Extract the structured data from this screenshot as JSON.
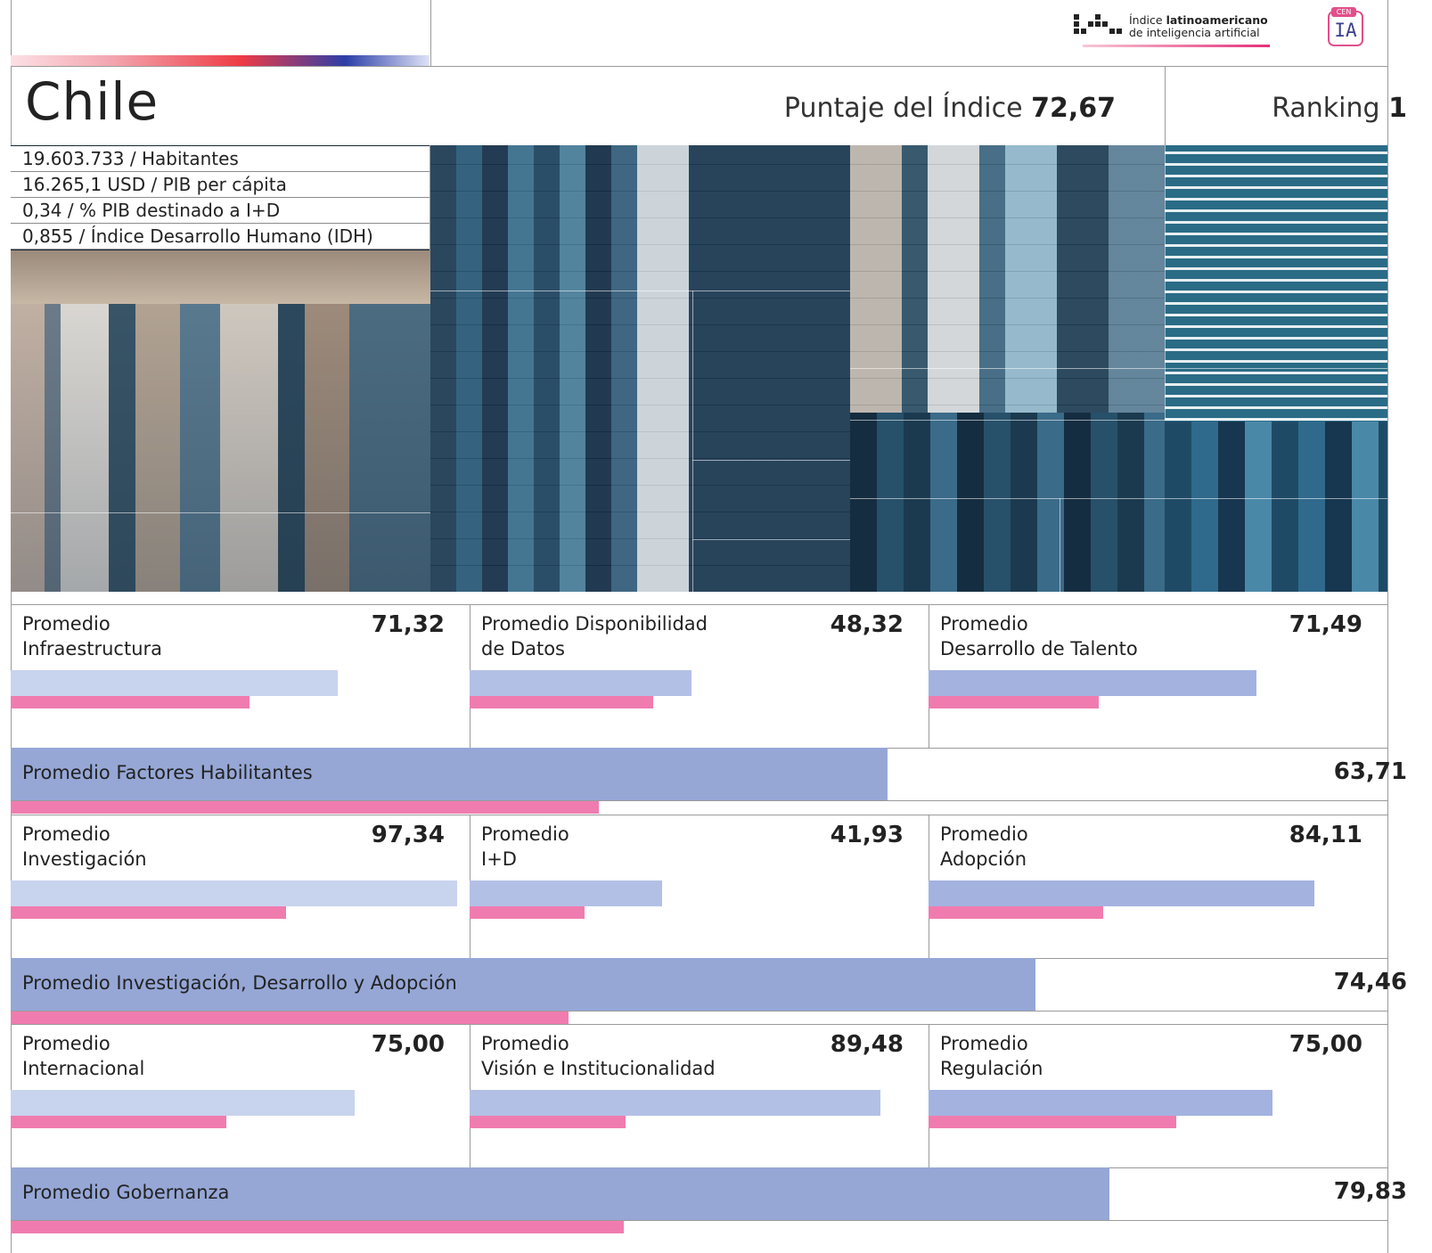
{
  "header": {
    "logo_title_prefix": "Índice",
    "logo_title_bold": "latinoamericano",
    "logo_subtitle": "de inteligencia artificial",
    "cenia_tag": "CEN",
    "cenia_mark": "IA"
  },
  "country": {
    "name": "Chile",
    "score_label": "Puntaje del Índice",
    "score_value": "72,67",
    "rank_label": "Ranking",
    "rank_value": "1"
  },
  "stats": [
    "19.603.733 / Habitantes",
    "16.265,1 USD / PIB per cápita",
    "0,34 / % PIB destinado a I+D",
    "0,855 / Índice Desarrollo Humano (IDH)"
  ],
  "colors": {
    "bar_light": "#c8d3ee",
    "bar_mid": "#b3c0e6",
    "bar_dark": "#a3b2df",
    "band": "#96a7d6",
    "pink": "#f07caf"
  },
  "groups": [
    {
      "cells": [
        {
          "line1": "Promedio",
          "line2": "Infraestructura",
          "value": "71,32",
          "score": 71.32,
          "benchmark": 0.52
        },
        {
          "line1": "Promedio Disponibilidad",
          "line2": "de Datos",
          "value": "48,32",
          "score": 48.32,
          "benchmark": 0.4
        },
        {
          "line1": "Promedio",
          "line2": "Desarrollo de Talento",
          "value": "71,49",
          "score": 71.49,
          "benchmark": 0.37
        }
      ],
      "band": {
        "label": "Promedio Factores Habilitantes",
        "value": "63,71",
        "score": 63.71,
        "benchmark": 0.427
      }
    },
    {
      "cells": [
        {
          "line1": "Promedio",
          "line2": "Investigación",
          "value": "97,34",
          "score": 97.34,
          "benchmark": 0.6
        },
        {
          "line1": "Promedio",
          "line2": "I+D",
          "value": "41,93",
          "score": 41.93,
          "benchmark": 0.25
        },
        {
          "line1": "Promedio",
          "line2": "Adopción",
          "value": "84,11",
          "score": 84.11,
          "benchmark": 0.38
        }
      ],
      "band": {
        "label": "Promedio Investigación, Desarrollo y Adopción",
        "value": "74,46",
        "score": 74.46,
        "benchmark": 0.405
      }
    },
    {
      "cells": [
        {
          "line1": "Promedio",
          "line2": "Internacional",
          "value": "75,00",
          "score": 75.0,
          "benchmark": 0.47
        },
        {
          "line1": "Promedio",
          "line2": "Visión e Institucionalidad",
          "value": "89,48",
          "score": 89.48,
          "benchmark": 0.34
        },
        {
          "line1": "Promedio",
          "line2": "Regulación",
          "value": "75,00",
          "score": 75.0,
          "benchmark": 0.54
        }
      ],
      "band": {
        "label": "Promedio Gobernanza",
        "value": "79,83",
        "score": 79.83,
        "benchmark": 0.445
      }
    }
  ]
}
